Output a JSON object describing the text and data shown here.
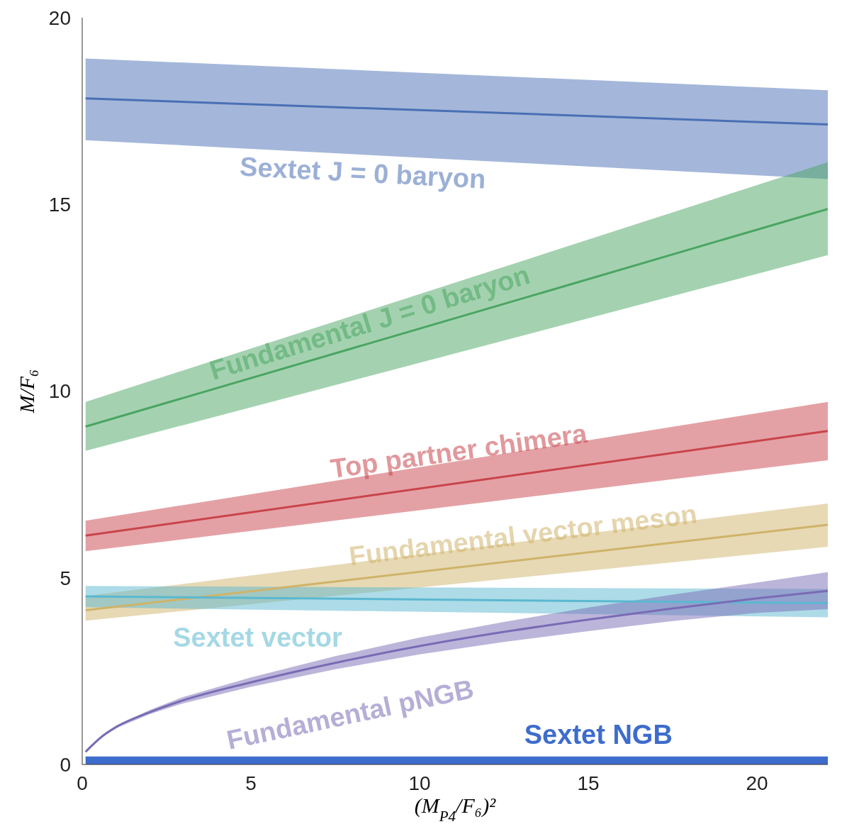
{
  "chart_data": {
    "type": "line",
    "xlabel": "(M$_{P4}$/F₆)²",
    "ylabel": "M/F₆",
    "xlim": [
      0,
      22.1
    ],
    "xticks": [
      0,
      5,
      10,
      15,
      20
    ],
    "ylim": [
      0,
      20
    ],
    "yticks": [
      0,
      5,
      10,
      15,
      20
    ],
    "grid": false,
    "legend": false,
    "marker": "none",
    "line_style": "solid",
    "series": [
      {
        "name": "Sextet J = 0 baryon",
        "color": "#4a6fb5",
        "x": [
          0.1,
          22.1
        ],
        "values": [
          17.84,
          17.14
        ],
        "lower": [
          16.72,
          15.68
        ],
        "upper": [
          18.91,
          18.06
        ]
      },
      {
        "name": "Fundamental J = 0 baryon",
        "color": "#4aa562",
        "x": [
          0.1,
          22.1
        ],
        "values": [
          9.05,
          14.88
        ],
        "lower": [
          8.4,
          13.64
        ],
        "upper": [
          9.71,
          16.13
        ]
      },
      {
        "name": "Top partner chimera",
        "color": "#c9444b",
        "x": [
          0.1,
          22.1
        ],
        "values": [
          6.13,
          8.93
        ],
        "lower": [
          5.71,
          8.15
        ],
        "upper": [
          6.53,
          9.71
        ]
      },
      {
        "name": "Fundamental vector meson",
        "color": "#cfb36a",
        "x": [
          0.1,
          22.1
        ],
        "values": [
          4.13,
          6.42
        ],
        "lower": [
          3.85,
          5.83
        ],
        "upper": [
          4.51,
          6.99
        ]
      },
      {
        "name": "Sextet vector",
        "color": "#5bb8d0",
        "x": [
          0.1,
          22.1
        ],
        "values": [
          4.5,
          4.32
        ],
        "lower": [
          4.21,
          3.94
        ],
        "upper": [
          4.78,
          4.7
        ]
      },
      {
        "name": "Fundamental pNGB",
        "color": "#7a6bb5",
        "x": [
          0.1,
          0.6,
          1,
          2,
          3,
          5,
          7.5,
          10,
          12.5,
          15,
          17.5,
          20,
          22.1
        ],
        "values": [
          0.34,
          0.76,
          1.0,
          1.4,
          1.72,
          2.2,
          2.72,
          3.17,
          3.55,
          3.88,
          4.18,
          4.45,
          4.65
        ],
        "lower": [
          0.33,
          0.74,
          0.97,
          1.35,
          1.64,
          2.08,
          2.55,
          2.95,
          3.28,
          3.57,
          3.84,
          4.06,
          4.16
        ],
        "upper": [
          0.36,
          0.79,
          1.04,
          1.46,
          1.81,
          2.33,
          2.9,
          3.4,
          3.82,
          4.2,
          4.55,
          4.87,
          5.15
        ]
      },
      {
        "name": "Sextet NGB",
        "color": "#3e6ccc",
        "x": [
          0.1,
          22.1
        ],
        "values": [
          0.1,
          0.1
        ]
      }
    ]
  }
}
